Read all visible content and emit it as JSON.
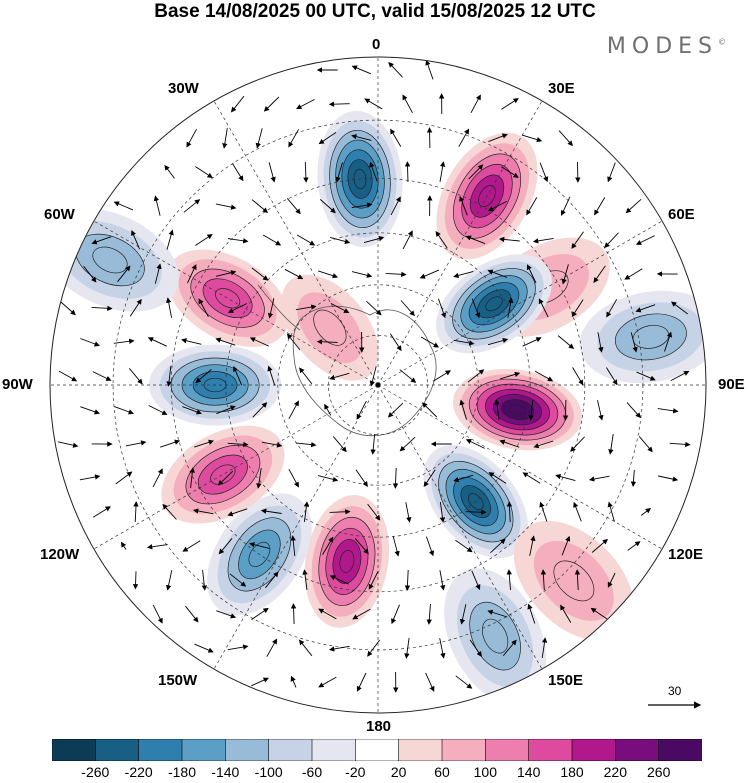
{
  "title": "Base 14/08/2025 00 UTC, valid 15/08/2025 12 UTC",
  "brand": "MODES",
  "brand_mark": "©",
  "projection": "south-polar-stereographic",
  "field": "geopotential height anomaly with wind vectors",
  "meridian_labels": {
    "lon_0": "0",
    "lon_30e": "30E",
    "lon_60e": "60E",
    "lon_90e": "90E",
    "lon_120e": "120E",
    "lon_150e": "150E",
    "lon_180": "180",
    "lon_150w": "150W",
    "lon_120w": "120W",
    "lon_90w": "90W",
    "lon_60w": "60W",
    "lon_30w": "30W"
  },
  "reference_vector": {
    "label": "30",
    "value": 30
  },
  "colorbar": {
    "ticks": [
      "-260",
      "-220",
      "-180",
      "-140",
      "-100",
      "-60",
      "-20",
      "20",
      "60",
      "100",
      "140",
      "180",
      "220",
      "260"
    ],
    "colors": [
      "#0d3b56",
      "#185f86",
      "#2f7fae",
      "#5b9fc7",
      "#98bcd8",
      "#c6d3e6",
      "#e6e6f0",
      "#ffffff",
      "#f7d6d6",
      "#f5aebd",
      "#ee7eae",
      "#dd4a9e",
      "#b1188c",
      "#7a0d7e",
      "#4a0a63"
    ]
  },
  "anomalies": [
    {
      "lon": -5,
      "lat": -50,
      "value": -240
    },
    {
      "lon": 30,
      "lat": -48,
      "value": 200
    },
    {
      "lon": 60,
      "lat": -52,
      "value": 80
    },
    {
      "lon": 55,
      "lat": -62,
      "value": -220
    },
    {
      "lon": 80,
      "lat": -38,
      "value": -120
    },
    {
      "lon": 100,
      "lat": -62,
      "value": 260
    },
    {
      "lon": 140,
      "lat": -60,
      "value": -240
    },
    {
      "lon": 135,
      "lat": -38,
      "value": 60
    },
    {
      "lon": 155,
      "lat": -38,
      "value": -110
    },
    {
      "lon": -170,
      "lat": -55,
      "value": 200
    },
    {
      "lon": -145,
      "lat": -50,
      "value": -160
    },
    {
      "lon": -120,
      "lat": -55,
      "value": 170
    },
    {
      "lon": -90,
      "lat": -58,
      "value": -200
    },
    {
      "lon": -60,
      "lat": -56,
      "value": 170
    },
    {
      "lon": -65,
      "lat": -35,
      "value": -100
    },
    {
      "lon": -40,
      "lat": -75,
      "value": 80
    }
  ]
}
